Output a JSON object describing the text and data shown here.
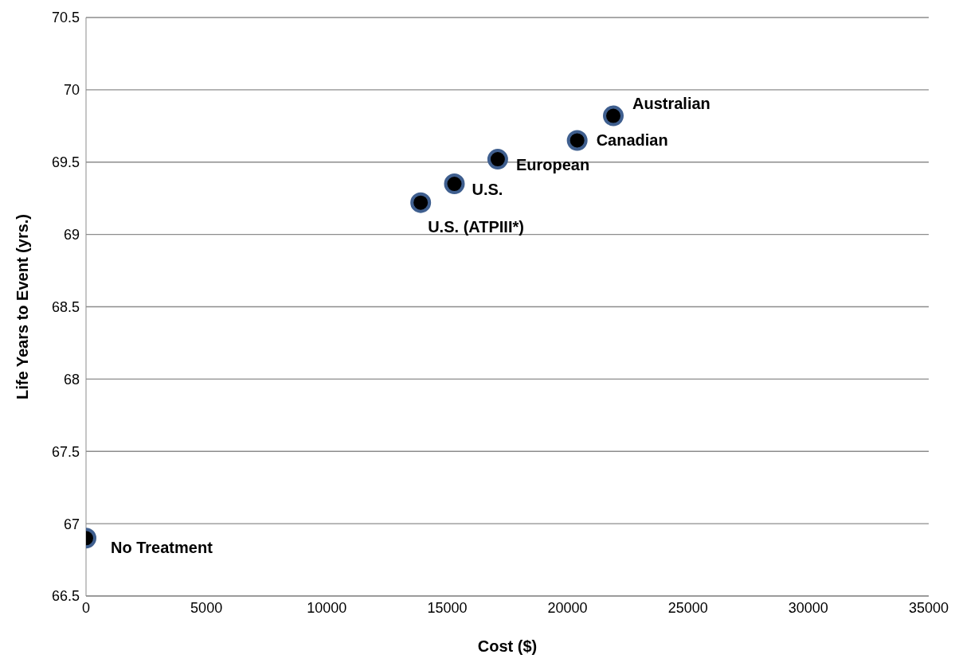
{
  "chart_data": {
    "type": "scatter",
    "xlabel": "Cost ($)",
    "ylabel": "Life Years to Event (yrs.)",
    "x": [
      0,
      13900,
      15300,
      17100,
      20400,
      21900
    ],
    "series": [
      {
        "color": "#000000",
        "values": [
          66.9,
          69.22,
          69.35,
          69.52,
          69.65,
          69.82
        ]
      }
    ],
    "xlim": [
      0,
      35000
    ],
    "xticks": [
      0,
      5000,
      10000,
      15000,
      20000,
      25000,
      30000,
      35000
    ],
    "ylim": [
      66.5,
      70.5
    ],
    "yticks": [
      66.5,
      67,
      67.5,
      68,
      68.5,
      69,
      69.5,
      70,
      70.5
    ],
    "grid": "y",
    "marker": "circle",
    "legend": false,
    "annotations": [
      {
        "text": "No Treatment",
        "x": 0,
        "y": 66.9
      },
      {
        "text": "U.S. (ATPIII*)",
        "x": 13900,
        "y": 69.22
      },
      {
        "text": "U.S.",
        "x": 15300,
        "y": 69.35
      },
      {
        "text": "European",
        "x": 17100,
        "y": 69.52
      },
      {
        "text": "Canadian",
        "x": 20400,
        "y": 69.65
      },
      {
        "text": "Australian",
        "x": 21900,
        "y": 69.82
      }
    ]
  }
}
